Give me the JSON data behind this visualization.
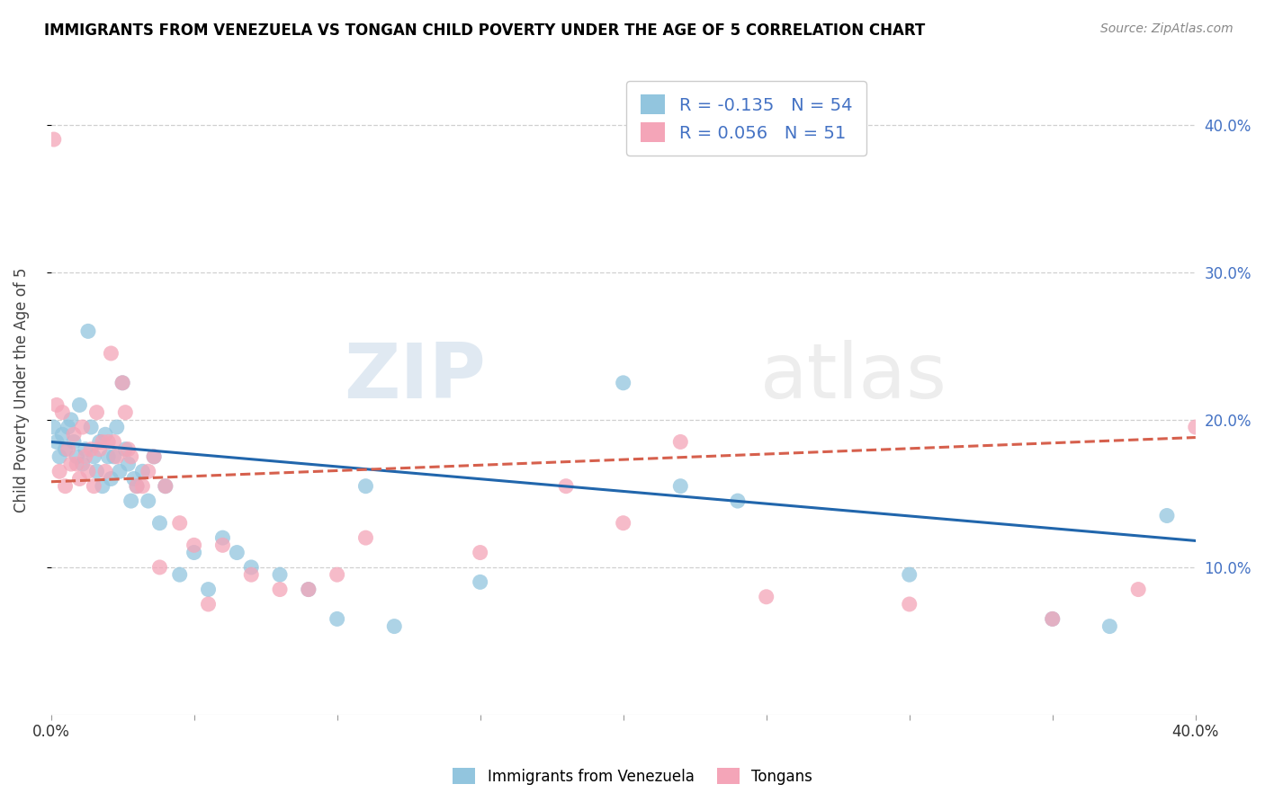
{
  "title": "IMMIGRANTS FROM VENEZUELA VS TONGAN CHILD POVERTY UNDER THE AGE OF 5 CORRELATION CHART",
  "source": "Source: ZipAtlas.com",
  "ylabel": "Child Poverty Under the Age of 5",
  "right_yticks": [
    "40.0%",
    "30.0%",
    "20.0%",
    "10.0%"
  ],
  "right_ytick_vals": [
    0.4,
    0.3,
    0.2,
    0.1
  ],
  "xmin": 0.0,
  "xmax": 0.4,
  "ymin": 0.0,
  "ymax": 0.44,
  "color_blue": "#92c5de",
  "color_pink": "#f4a5b8",
  "line_blue": "#2166ac",
  "line_pink": "#d6604d",
  "legend_blue_r": "R = -0.135",
  "legend_blue_n": "N = 54",
  "legend_pink_r": "R = 0.056",
  "legend_pink_n": "N = 51",
  "watermark_zip": "ZIP",
  "watermark_atlas": "atlas",
  "legend_label_blue": "Immigrants from Venezuela",
  "legend_label_pink": "Tongans",
  "blue_scatter_x": [
    0.001,
    0.002,
    0.003,
    0.004,
    0.005,
    0.006,
    0.007,
    0.008,
    0.009,
    0.01,
    0.011,
    0.012,
    0.013,
    0.014,
    0.015,
    0.016,
    0.017,
    0.018,
    0.019,
    0.02,
    0.021,
    0.022,
    0.023,
    0.024,
    0.025,
    0.026,
    0.027,
    0.028,
    0.029,
    0.03,
    0.032,
    0.034,
    0.036,
    0.038,
    0.04,
    0.045,
    0.05,
    0.055,
    0.06,
    0.065,
    0.07,
    0.08,
    0.09,
    0.1,
    0.11,
    0.12,
    0.15,
    0.2,
    0.22,
    0.24,
    0.3,
    0.35,
    0.37,
    0.39
  ],
  "blue_scatter_y": [
    0.195,
    0.185,
    0.175,
    0.19,
    0.18,
    0.195,
    0.2,
    0.185,
    0.175,
    0.21,
    0.17,
    0.18,
    0.26,
    0.195,
    0.175,
    0.165,
    0.185,
    0.155,
    0.19,
    0.175,
    0.16,
    0.175,
    0.195,
    0.165,
    0.225,
    0.18,
    0.17,
    0.145,
    0.16,
    0.155,
    0.165,
    0.145,
    0.175,
    0.13,
    0.155,
    0.095,
    0.11,
    0.085,
    0.12,
    0.11,
    0.1,
    0.095,
    0.085,
    0.065,
    0.155,
    0.06,
    0.09,
    0.225,
    0.155,
    0.145,
    0.095,
    0.065,
    0.06,
    0.135
  ],
  "pink_scatter_x": [
    0.001,
    0.002,
    0.003,
    0.004,
    0.005,
    0.006,
    0.007,
    0.008,
    0.009,
    0.01,
    0.011,
    0.012,
    0.013,
    0.014,
    0.015,
    0.016,
    0.017,
    0.018,
    0.019,
    0.02,
    0.021,
    0.022,
    0.023,
    0.025,
    0.026,
    0.027,
    0.028,
    0.03,
    0.032,
    0.034,
    0.036,
    0.038,
    0.04,
    0.045,
    0.05,
    0.055,
    0.06,
    0.07,
    0.08,
    0.09,
    0.1,
    0.11,
    0.15,
    0.18,
    0.2,
    0.22,
    0.25,
    0.3,
    0.35,
    0.38,
    0.4
  ],
  "pink_scatter_y": [
    0.39,
    0.21,
    0.165,
    0.205,
    0.155,
    0.18,
    0.17,
    0.19,
    0.17,
    0.16,
    0.195,
    0.175,
    0.165,
    0.18,
    0.155,
    0.205,
    0.18,
    0.185,
    0.165,
    0.185,
    0.245,
    0.185,
    0.175,
    0.225,
    0.205,
    0.18,
    0.175,
    0.155,
    0.155,
    0.165,
    0.175,
    0.1,
    0.155,
    0.13,
    0.115,
    0.075,
    0.115,
    0.095,
    0.085,
    0.085,
    0.095,
    0.12,
    0.11,
    0.155,
    0.13,
    0.185,
    0.08,
    0.075,
    0.065,
    0.085,
    0.195
  ],
  "blue_trend_x": [
    0.0,
    0.4
  ],
  "blue_trend_y": [
    0.185,
    0.118
  ],
  "pink_trend_x": [
    0.0,
    0.4
  ],
  "pink_trend_y": [
    0.158,
    0.188
  ],
  "grid_color": "#d0d0d0",
  "title_fontsize": 12,
  "right_tick_color": "#4472c4"
}
